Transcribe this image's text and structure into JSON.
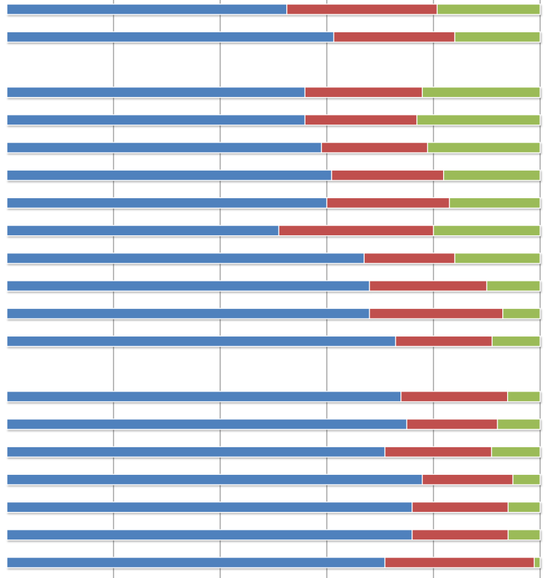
{
  "chart_data": {
    "type": "bar",
    "orientation": "horizontal",
    "stacked": true,
    "percent_stacked": true,
    "xlim": [
      0,
      100
    ],
    "grid": true,
    "legend": "none",
    "colors": [
      "#4F81BD",
      "#C0504D",
      "#9BBB59"
    ],
    "rows": [
      {
        "values": [
          52.5,
          28.2,
          19.3
        ]
      },
      {
        "values": [
          61.3,
          22.7,
          16.0
        ]
      },
      {
        "gap": true
      },
      {
        "values": [
          55.9,
          22.0,
          22.1
        ]
      },
      {
        "values": [
          55.9,
          21.0,
          23.1
        ]
      },
      {
        "values": [
          59.0,
          19.9,
          21.1
        ]
      },
      {
        "values": [
          60.9,
          21.0,
          18.1
        ]
      },
      {
        "values": [
          60.0,
          23.0,
          17.0
        ]
      },
      {
        "values": [
          51.0,
          29.0,
          20.0
        ]
      },
      {
        "values": [
          67.0,
          17.0,
          16.0
        ]
      },
      {
        "values": [
          68.0,
          22.0,
          10.0
        ]
      },
      {
        "values": [
          68.0,
          25.0,
          7.0
        ]
      },
      {
        "values": [
          72.9,
          18.1,
          9.0
        ]
      },
      {
        "gap": true
      },
      {
        "values": [
          73.9,
          20.0,
          6.1
        ]
      },
      {
        "values": [
          75.0,
          17.0,
          8.0
        ]
      },
      {
        "values": [
          70.9,
          20.0,
          9.1
        ]
      },
      {
        "values": [
          77.9,
          17.0,
          5.1
        ]
      },
      {
        "values": [
          76.0,
          18.0,
          6.0
        ]
      },
      {
        "values": [
          76.0,
          18.0,
          6.0
        ]
      },
      {
        "values": [
          70.9,
          28.0,
          1.1
        ]
      }
    ]
  }
}
